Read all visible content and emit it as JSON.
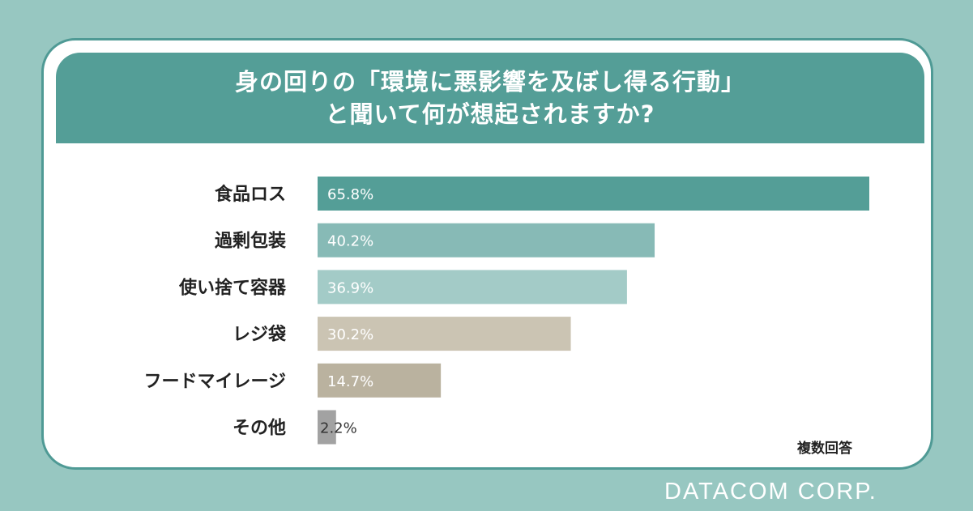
{
  "header": {
    "title_line1": "身の回りの「環境に悪影響を及ぼし得る行動」",
    "title_line2": "と聞いて何が想起されますか?"
  },
  "note": "複数回答",
  "brand": "DATACOM CORP.",
  "chart_data": {
    "type": "bar",
    "orientation": "horizontal",
    "categories": [
      "食品ロス",
      "過剰包装",
      "使い捨て容器",
      "レジ袋",
      "フードマイレージ",
      "その他"
    ],
    "values": [
      65.8,
      40.2,
      36.9,
      30.2,
      14.7,
      2.2
    ],
    "value_labels": [
      "65.8%",
      "40.2%",
      "36.9%",
      "30.2%",
      "14.7%",
      "2.2%"
    ],
    "colors": [
      "#549e97",
      "#87bab6",
      "#a3cbc7",
      "#cbc4b3",
      "#bab29f",
      "#a2a2a2"
    ],
    "xlim": [
      0,
      65.8
    ],
    "grid": false,
    "legend": "none"
  }
}
